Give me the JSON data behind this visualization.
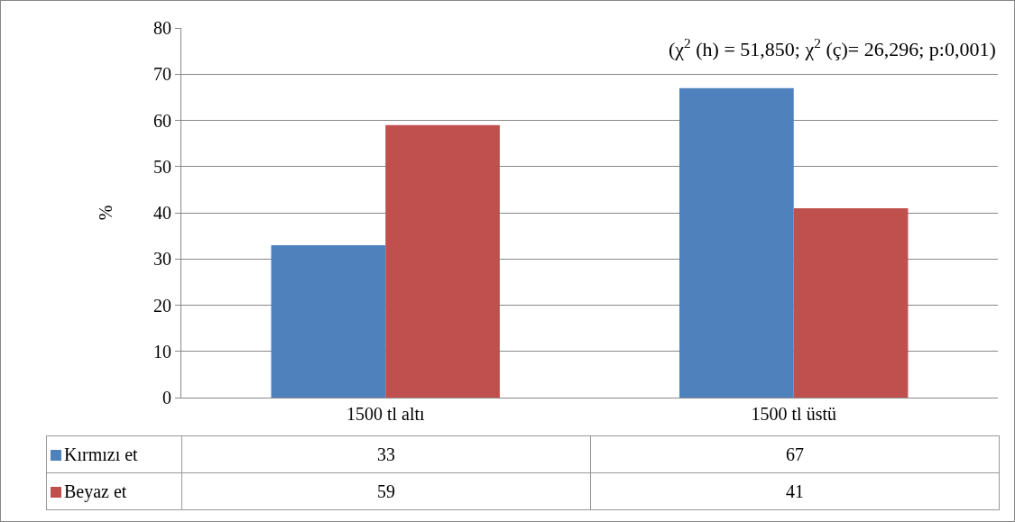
{
  "chart_data": {
    "type": "bar",
    "ylabel": "%",
    "categories": [
      "1500 tl altı",
      "1500 tl üstü"
    ],
    "series": [
      {
        "name": "Kırmızı et",
        "color": "#4f81bd",
        "values": [
          33,
          67
        ]
      },
      {
        "name": "Beyaz et",
        "color": "#c0504d",
        "values": [
          59,
          41
        ]
      }
    ],
    "ylim": [
      0,
      80
    ],
    "yticks": [
      0,
      10,
      20,
      30,
      40,
      50,
      60,
      70,
      80
    ],
    "grid": "y",
    "legend": "bottom",
    "data_labels": true,
    "annotations": [
      "(χ$^{2}$ (h) = 51,850; χ$^{2}$ (ç)= 26,296; p:0,001)"
    ]
  }
}
